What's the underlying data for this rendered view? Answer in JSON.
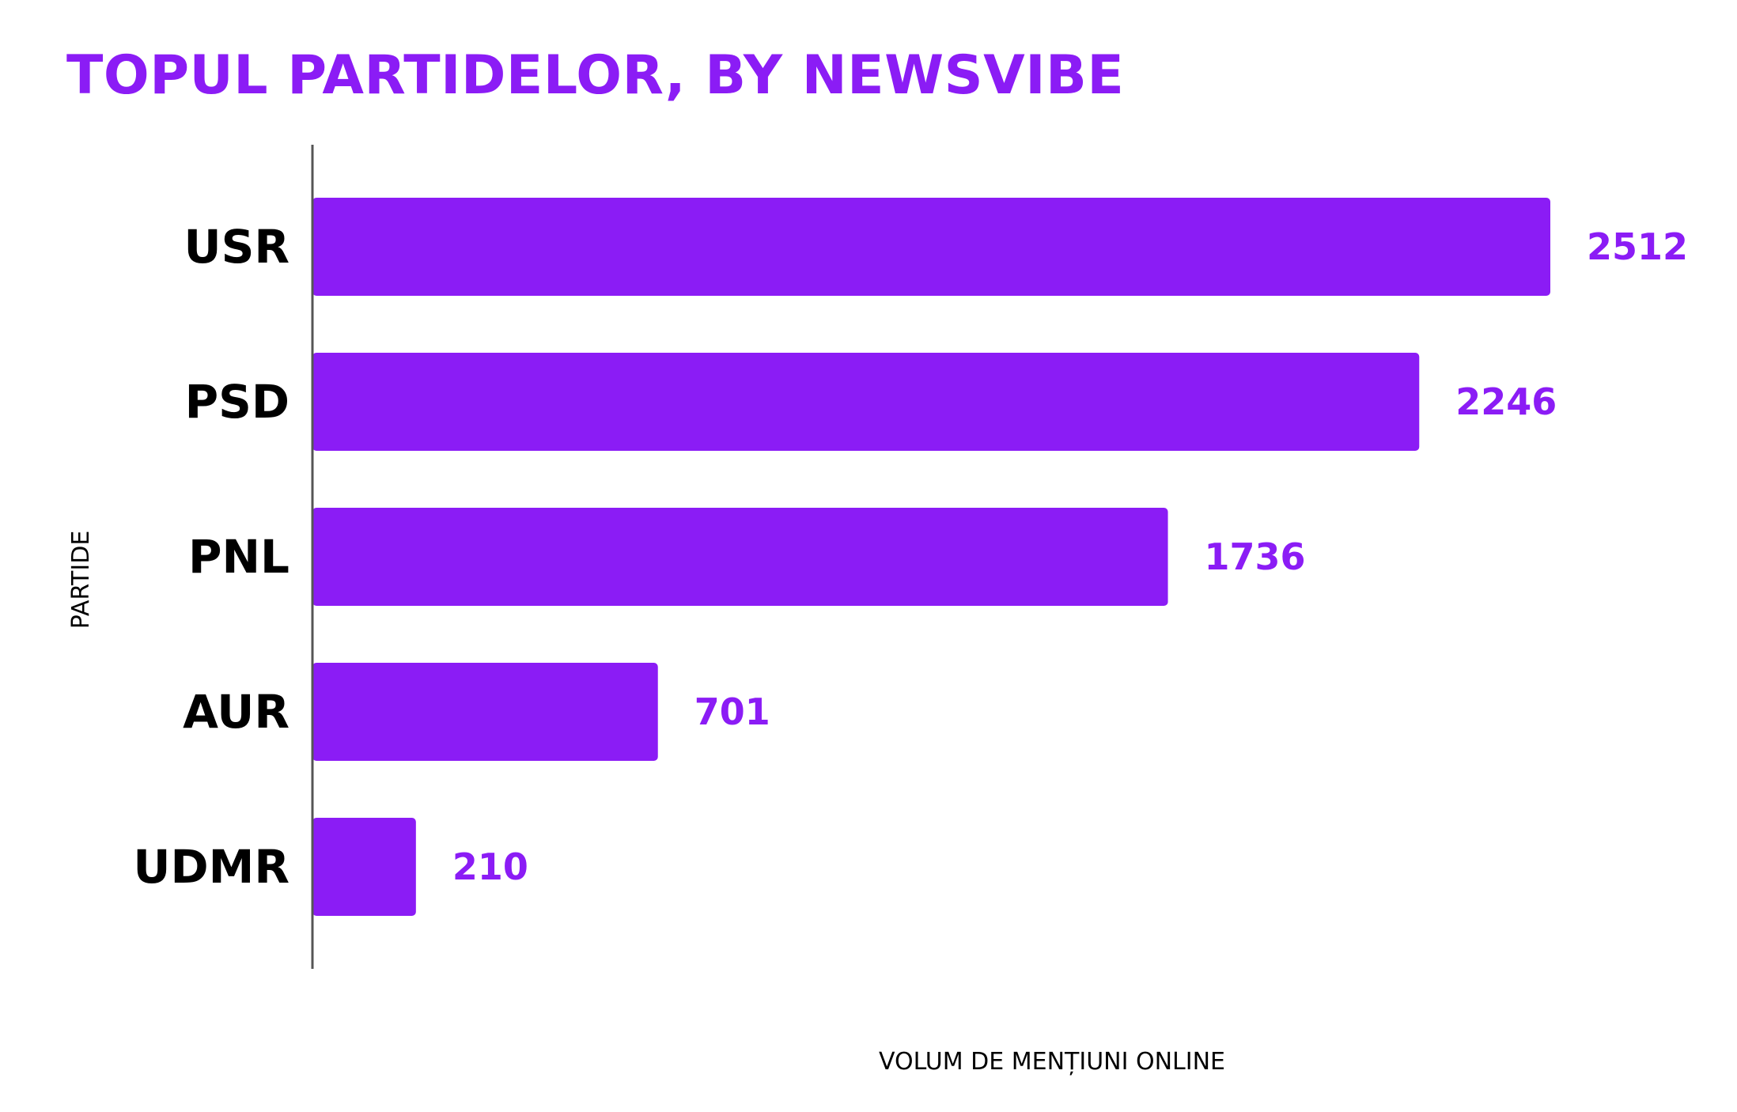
{
  "chart_data": {
    "type": "bar",
    "orientation": "horizontal",
    "title": "TOPUL PARTIDELOR, BY NEWSVIBE",
    "xlabel": "VOLUM DE MENȚIUNI ONLINE",
    "ylabel": "PARTIDE",
    "categories": [
      "USR",
      "PSD",
      "PNL",
      "AUR",
      "UDMR"
    ],
    "values": [
      2512,
      2246,
      1736,
      701,
      210
    ],
    "xlim": [
      0,
      2512
    ],
    "grid": false,
    "legend": "none",
    "data_labels": true
  },
  "colors": {
    "bar": "#8B1CF5",
    "title": "#8B1CF5",
    "value_label": "#8B1CF5",
    "axis_line": "#555555"
  }
}
